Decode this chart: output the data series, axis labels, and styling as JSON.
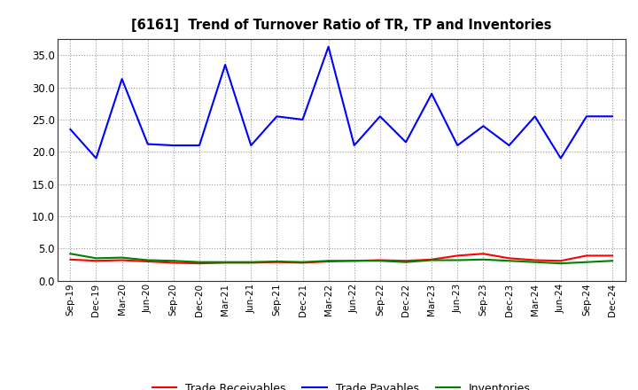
{
  "title": "[6161]  Trend of Turnover Ratio of TR, TP and Inventories",
  "x_labels": [
    "Sep-19",
    "Dec-19",
    "Mar-20",
    "Jun-20",
    "Sep-20",
    "Dec-20",
    "Mar-21",
    "Jun-21",
    "Sep-21",
    "Dec-21",
    "Mar-22",
    "Jun-22",
    "Sep-22",
    "Dec-22",
    "Mar-23",
    "Jun-23",
    "Sep-23",
    "Dec-23",
    "Mar-24",
    "Jun-24",
    "Sep-24",
    "Dec-24"
  ],
  "trade_receivables": [
    3.3,
    3.1,
    3.2,
    3.0,
    2.8,
    2.7,
    2.8,
    2.8,
    2.9,
    2.8,
    3.0,
    3.1,
    3.2,
    3.1,
    3.3,
    3.9,
    4.2,
    3.5,
    3.2,
    3.1,
    3.9,
    3.9
  ],
  "trade_payables": [
    23.5,
    19.0,
    31.3,
    21.2,
    21.0,
    21.0,
    33.5,
    21.0,
    25.5,
    25.0,
    36.3,
    21.0,
    25.5,
    21.5,
    29.0,
    21.0,
    24.0,
    21.0,
    25.5,
    19.0,
    25.5,
    25.5
  ],
  "inventories": [
    4.2,
    3.5,
    3.6,
    3.2,
    3.1,
    2.9,
    2.9,
    2.9,
    3.0,
    2.9,
    3.1,
    3.1,
    3.1,
    2.9,
    3.2,
    3.2,
    3.3,
    3.1,
    2.9,
    2.7,
    2.9,
    3.1
  ],
  "ylim": [
    0.0,
    37.5
  ],
  "yticks": [
    0.0,
    5.0,
    10.0,
    15.0,
    20.0,
    25.0,
    30.0,
    35.0
  ],
  "tr_color": "#ff0000",
  "tp_color": "#0000ff",
  "inv_color": "#008000",
  "background_color": "#ffffff",
  "grid_color": "#aaaaaa",
  "legend_labels": [
    "Trade Receivables",
    "Trade Payables",
    "Inventories"
  ]
}
